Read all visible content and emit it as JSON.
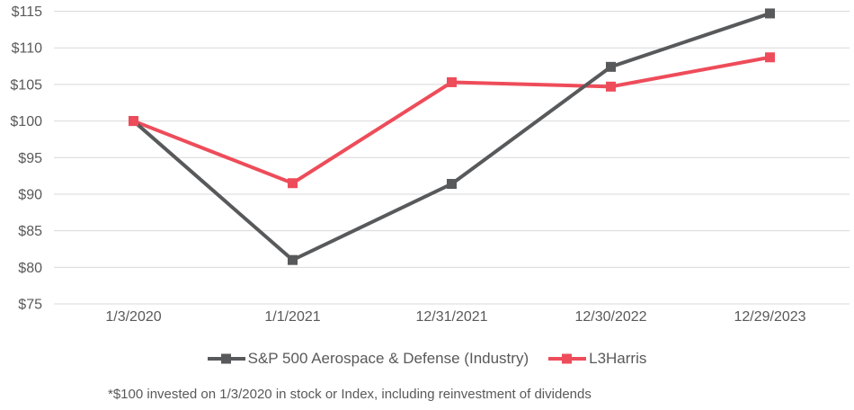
{
  "chart_data": {
    "type": "line",
    "categories": [
      "1/3/2020",
      "1/1/2021",
      "12/31/2021",
      "12/30/2022",
      "12/29/2023"
    ],
    "series": [
      {
        "id": "sp500-aerospace-defense",
        "name": "S&P 500 Aerospace & Defense (Industry)",
        "color": "#58595B",
        "marker": "square",
        "values": [
          100,
          81,
          91.4,
          107.4,
          114.7
        ]
      },
      {
        "id": "l3harris",
        "name": "L3Harris",
        "color": "#EE4C5A",
        "marker": "square",
        "values": [
          100,
          91.5,
          105.3,
          104.7,
          108.7
        ]
      }
    ],
    "y_axis": {
      "min": 75,
      "max": 115,
      "step": 5,
      "tick_prefix": "$",
      "tick_labels": [
        "$75",
        "$80",
        "$85",
        "$90",
        "$95",
        "$100",
        "$105",
        "$110",
        "$115"
      ]
    },
    "x_axis": {
      "tick_labels": [
        "1/3/2020",
        "1/1/2021",
        "12/31/2021",
        "12/30/2022",
        "12/29/2023"
      ]
    },
    "grid": true,
    "gridline_color": "#D9D9D9",
    "text_color": "#595959",
    "legend_position": "bottom",
    "footnote": "*$100 invested on 1/3/2020 in stock or Index, including reinvestment of dividends"
  }
}
